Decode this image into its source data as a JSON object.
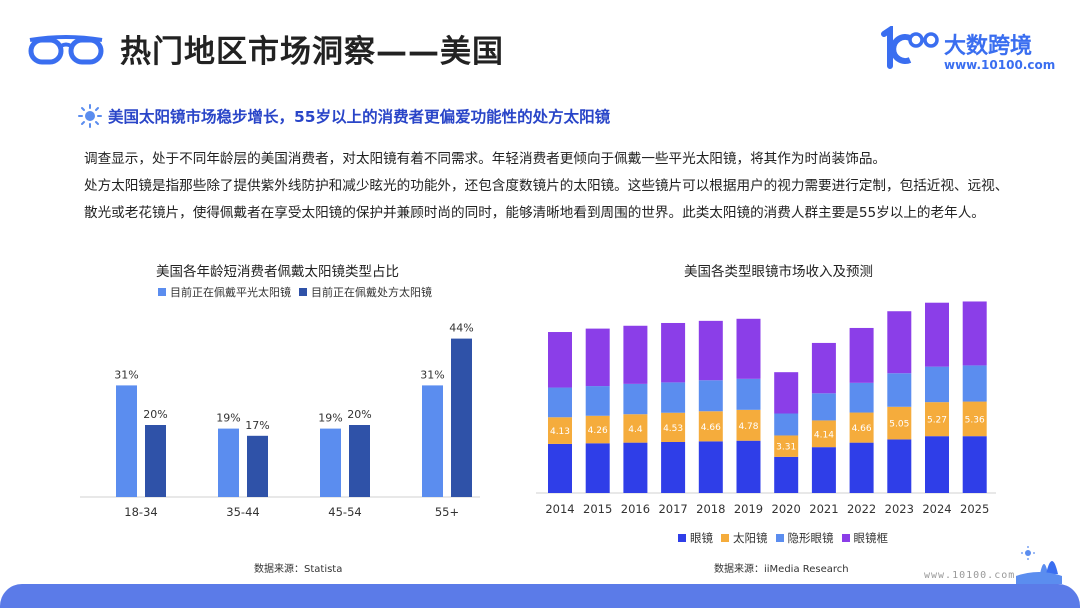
{
  "header": {
    "title": "热门地区市场洞察——美国",
    "brand_name": "大数跨境",
    "brand_url": "www.10100.com"
  },
  "subtitle": "美国太阳镜市场稳步增长，55岁以上的消费者更偏爱功能性的处方太阳镜",
  "body": {
    "p1": "调查显示，处于不同年龄层的美国消费者，对太阳镜有着不同需求。年轻消费者更倾向于佩戴一些平光太阳镜，将其作为时尚装饰品。",
    "p2": "处方太阳镜是指那些除了提供紫外线防护和减少眩光的功能外，还包含度数镜片的太阳镜。这些镜片可以根据用户的视力需要进行定制，包括近视、远视、",
    "p3": "散光或老花镜片，使得佩戴者在享受太阳镜的保护并兼顾时尚的同时，能够清晰地看到周围的世界。此类太阳镜的消费人群主要是55岁以上的老年人。"
  },
  "chart_data": [
    {
      "type": "bar",
      "title": "美国各年龄短消费者佩戴太阳镜类型占比",
      "categories": [
        "18-34",
        "35-44",
        "45-54",
        "55+"
      ],
      "series": [
        {
          "name": "目前正在佩戴平光太阳镜",
          "values": [
            31,
            19,
            19,
            31
          ],
          "labels": [
            "31%",
            "19%",
            "19%",
            "31%"
          ],
          "color": "#5b8def"
        },
        {
          "name": "目前正在佩戴处方太阳镜",
          "values": [
            20,
            17,
            20,
            44
          ],
          "labels": [
            "20%",
            "17%",
            "20%",
            "44%"
          ],
          "color": "#2f52a8"
        }
      ],
      "ylim": [
        0,
        50
      ],
      "source": "数据来源：Statista"
    },
    {
      "type": "bar",
      "stacked": true,
      "title": "美国各类型眼镜市场收入及预测",
      "categories": [
        "2014",
        "2015",
        "2016",
        "2017",
        "2018",
        "2019",
        "2020",
        "2021",
        "2022",
        "2023",
        "2024",
        "2025"
      ],
      "series": [
        {
          "name": "眼镜",
          "values": [
            7.6,
            7.7,
            7.8,
            7.9,
            8.0,
            8.1,
            5.6,
            7.1,
            7.8,
            8.3,
            8.8,
            8.8
          ],
          "color": "#2f3ee8"
        },
        {
          "name": "太阳镜",
          "values": [
            4.13,
            4.26,
            4.4,
            4.53,
            4.66,
            4.78,
            3.31,
            4.14,
            4.66,
            5.05,
            5.27,
            5.36
          ],
          "labels": [
            "4.13",
            "4.26",
            "4.4",
            "4.53",
            "4.66",
            "4.78",
            "3.31",
            "4.14",
            "4.66",
            "5.05",
            "5.27",
            "5.36"
          ],
          "color": "#f5ac3c"
        },
        {
          "name": "隐形眼镜",
          "values": [
            4.6,
            4.6,
            4.7,
            4.7,
            4.8,
            4.8,
            3.4,
            4.2,
            4.6,
            5.2,
            5.5,
            5.6
          ],
          "color": "#5b8def"
        },
        {
          "name": "眼镜框",
          "values": [
            8.6,
            8.9,
            9.0,
            9.2,
            9.2,
            9.3,
            6.4,
            7.8,
            8.5,
            9.6,
            9.9,
            9.9
          ],
          "color": "#8b3ee8"
        }
      ],
      "ylim": [
        0,
        35
      ],
      "source": "数据来源：iiMedia Research"
    }
  ],
  "footer": {
    "url": "www.10100.com"
  }
}
